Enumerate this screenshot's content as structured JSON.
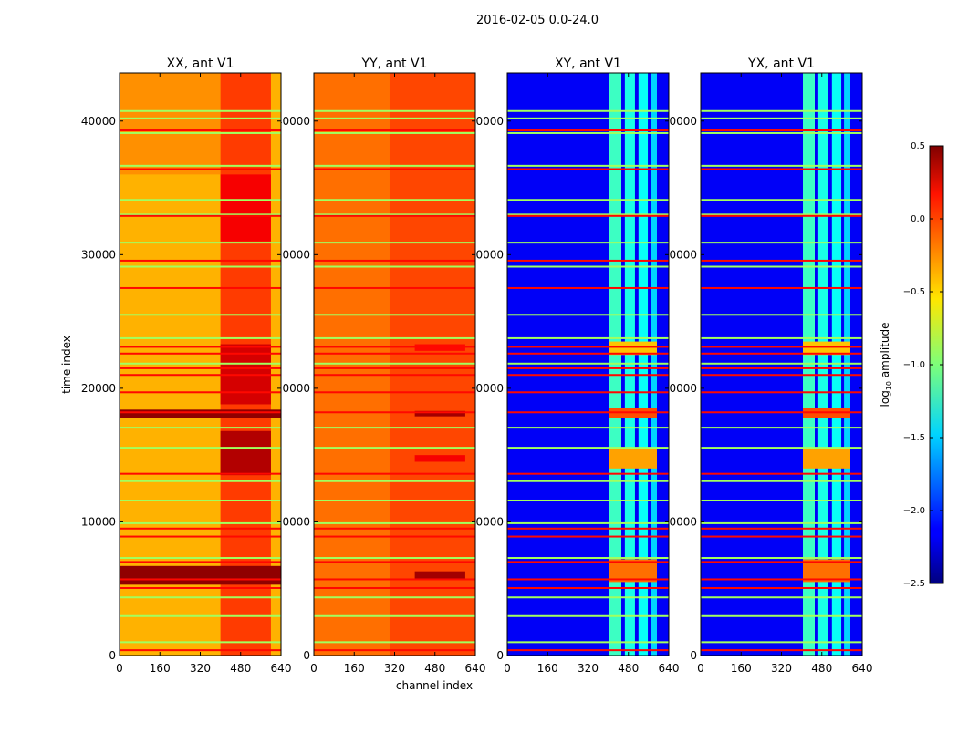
{
  "chart_data": {
    "type": "heatmap",
    "title": "2016-02-05 0.0-24.0",
    "xlabel": "channel index",
    "ylabel": "time index",
    "xlim": [
      0,
      640
    ],
    "ylim": [
      0,
      43600
    ],
    "xticks": [
      "0",
      "160",
      "320",
      "480",
      "640"
    ],
    "xtick_values": [
      0,
      160,
      320,
      480,
      640
    ],
    "yticks": [
      "0",
      "10000",
      "20000",
      "30000",
      "40000"
    ],
    "ytick_values": [
      0,
      10000,
      20000,
      30000,
      40000
    ],
    "colorbar": {
      "label_prefix": "log",
      "label_sub": "10",
      "label_suffix": " amplitude",
      "colormap": "jet",
      "range": [
        -2.5,
        0.5
      ],
      "ticks": [
        "0.5",
        "0.0",
        "−0.5",
        "−1.0",
        "−1.5",
        "−2.0",
        "−2.5"
      ],
      "tick_values": [
        0.5,
        0.0,
        -0.5,
        -1.0,
        -1.5,
        -2.0,
        -2.5
      ]
    },
    "flagged_rows_high": [
      39300,
      36400,
      32900,
      29550,
      27500,
      23100,
      22600,
      21500,
      21000,
      19700,
      18200,
      13600,
      9500,
      8900,
      7000,
      5700,
      5050,
      400
    ],
    "flagged_rows_high_value": 0.1,
    "flagged_rows_mid": [
      40750,
      40200,
      39100,
      36650,
      34100,
      33000,
      30900,
      29100,
      25500,
      23750,
      21850,
      17050,
      15550,
      13050,
      11600,
      9900,
      7300,
      4350,
      2950,
      1000
    ],
    "flagged_rows_mid_value": -0.9,
    "panels": [
      {
        "title": "XX, ant V1",
        "base": -0.4,
        "blocks": [
          {
            "t": [
              36000,
              43600
            ],
            "c": [
              0,
              400
            ],
            "v": -0.3
          },
          {
            "t": [
              0,
              43600
            ],
            "c": [
              400,
              600
            ],
            "v": -0.05
          },
          {
            "t": [
              13500,
              16800
            ],
            "c": [
              400,
              600
            ],
            "v": 0.35
          },
          {
            "t": [
              18800,
              23300
            ],
            "c": [
              400,
              600
            ],
            "v": 0.25
          },
          {
            "t": [
              31000,
              36000
            ],
            "c": [
              400,
              600
            ],
            "v": 0.15
          },
          {
            "t": [
              5300,
              6700
            ],
            "c": [
              0,
              640
            ],
            "v": 0.45
          },
          {
            "t": [
              17800,
              18400
            ],
            "c": [
              0,
              640
            ],
            "v": 0.45
          }
        ]
      },
      {
        "title": "YY, ant V1",
        "base": -0.2,
        "blocks": [
          {
            "t": [
              0,
              43600
            ],
            "c": [
              300,
              640
            ],
            "v": -0.08
          },
          {
            "t": [
              5700,
              6300
            ],
            "c": [
              400,
              600
            ],
            "v": 0.4
          },
          {
            "t": [
              17900,
              18300
            ],
            "c": [
              400,
              600
            ],
            "v": 0.4
          },
          {
            "t": [
              14500,
              15000
            ],
            "c": [
              400,
              600
            ],
            "v": 0.15
          },
          {
            "t": [
              22800,
              23300
            ],
            "c": [
              400,
              600
            ],
            "v": 0.1
          }
        ]
      },
      {
        "title": "XY, ant V1",
        "base": -2.15,
        "blocks": [
          {
            "t": [
              0,
              43600
            ],
            "c": [
              405,
              452
            ],
            "v": -1.2
          },
          {
            "t": [
              0,
              43600
            ],
            "c": [
              466,
              506
            ],
            "v": -1.3
          },
          {
            "t": [
              0,
              43600
            ],
            "c": [
              520,
              557
            ],
            "v": -1.35
          },
          {
            "t": [
              0,
              43600
            ],
            "c": [
              568,
              593
            ],
            "v": -1.5
          },
          {
            "t": [
              5500,
              7200
            ],
            "c": [
              405,
              593
            ],
            "v": -0.2
          },
          {
            "t": [
              14000,
              15500
            ],
            "c": [
              405,
              593
            ],
            "v": -0.35
          },
          {
            "t": [
              22500,
              23500
            ],
            "c": [
              405,
              593
            ],
            "v": -0.45
          },
          {
            "t": [
              17800,
              18500
            ],
            "c": [
              405,
              593
            ],
            "v": -0.1
          }
        ]
      },
      {
        "title": "YX, ant V1",
        "base": -2.15,
        "blocks": [
          {
            "t": [
              0,
              43600
            ],
            "c": [
              405,
              452
            ],
            "v": -1.2
          },
          {
            "t": [
              0,
              43600
            ],
            "c": [
              466,
              506
            ],
            "v": -1.3
          },
          {
            "t": [
              0,
              43600
            ],
            "c": [
              520,
              557
            ],
            "v": -1.35
          },
          {
            "t": [
              0,
              43600
            ],
            "c": [
              568,
              593
            ],
            "v": -1.5
          },
          {
            "t": [
              5500,
              7200
            ],
            "c": [
              405,
              593
            ],
            "v": -0.2
          },
          {
            "t": [
              14000,
              15500
            ],
            "c": [
              405,
              593
            ],
            "v": -0.35
          },
          {
            "t": [
              22500,
              23500
            ],
            "c": [
              405,
              593
            ],
            "v": -0.45
          },
          {
            "t": [
              17800,
              18500
            ],
            "c": [
              405,
              593
            ],
            "v": -0.1
          }
        ]
      }
    ]
  }
}
